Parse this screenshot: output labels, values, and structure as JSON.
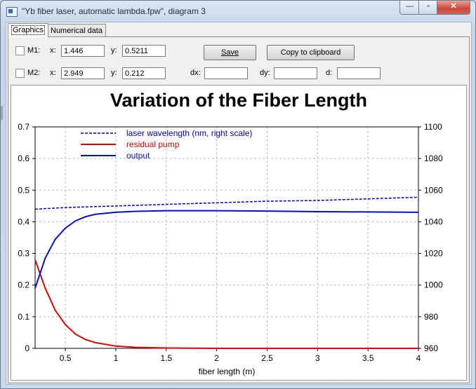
{
  "window": {
    "title": "\"Yb fiber laser, automatic lambda.fpw\", diagram 3",
    "close_glyph": "✕",
    "min_glyph": "—",
    "max_glyph": "▫"
  },
  "tabs": [
    {
      "label": "Graphics"
    },
    {
      "label": "Numerical data"
    }
  ],
  "markers": {
    "m1": {
      "label": "M1:",
      "x_label": "x:",
      "x": "1.446",
      "y_label": "y:",
      "y": "0.5211"
    },
    "m2": {
      "label": "M2:",
      "x_label": "x:",
      "x": "2.949",
      "y_label": "y:",
      "y": "0.212"
    },
    "dx_label": "dx:",
    "dy_label": "dy:",
    "d_label": "d:",
    "dx": "",
    "dy": "",
    "d": ""
  },
  "buttons": {
    "save": "Save",
    "copy": "Copy to clipboard"
  },
  "colors": {
    "wavelength": "#0000c0",
    "pump": "#e00000",
    "output": "#0010c8"
  },
  "chart_data": {
    "type": "line",
    "title": "Variation of the Fiber Length",
    "xlabel": "fiber length (m)",
    "xlim": [
      0.2,
      4
    ],
    "ylim": [
      0,
      0.7
    ],
    "y2lim": [
      960,
      1100
    ],
    "x_ticks": [
      "0.5",
      "1",
      "1.5",
      "2",
      "2.5",
      "3",
      "3.5",
      "4"
    ],
    "y_ticks": [
      "0",
      "0.1",
      "0.2",
      "0.3",
      "0.4",
      "0.5",
      "0.6",
      "0.7"
    ],
    "y2_ticks": [
      "960",
      "980",
      "1000",
      "1020",
      "1040",
      "1060",
      "1080",
      "1100"
    ],
    "grid": true,
    "legend_position": "top-left",
    "series": [
      {
        "name": "laser wavelength (nm, right scale)",
        "axis": "right",
        "style": "dashed",
        "x": [
          0.2,
          0.5,
          1,
          1.5,
          2,
          2.5,
          3,
          3.5,
          4
        ],
        "values": [
          1048,
          1049,
          1050,
          1051,
          1052,
          1053,
          1053.5,
          1054.5,
          1055.5
        ]
      },
      {
        "name": "residual pump",
        "axis": "left",
        "style": "solid",
        "x": [
          0.2,
          0.3,
          0.4,
          0.5,
          0.6,
          0.7,
          0.8,
          1,
          1.2,
          1.5,
          2,
          2.5,
          3,
          4
        ],
        "values": [
          0.28,
          0.19,
          0.12,
          0.075,
          0.045,
          0.028,
          0.018,
          0.007,
          0.003,
          0.001,
          0,
          0,
          0,
          0
        ]
      },
      {
        "name": "output",
        "axis": "left",
        "style": "solid",
        "x": [
          0.2,
          0.3,
          0.4,
          0.5,
          0.6,
          0.7,
          0.8,
          1,
          1.2,
          1.5,
          2,
          2.5,
          3,
          3.5,
          4
        ],
        "values": [
          0.19,
          0.285,
          0.345,
          0.38,
          0.403,
          0.416,
          0.424,
          0.43,
          0.433,
          0.435,
          0.435,
          0.434,
          0.432,
          0.431,
          0.43
        ]
      }
    ]
  }
}
